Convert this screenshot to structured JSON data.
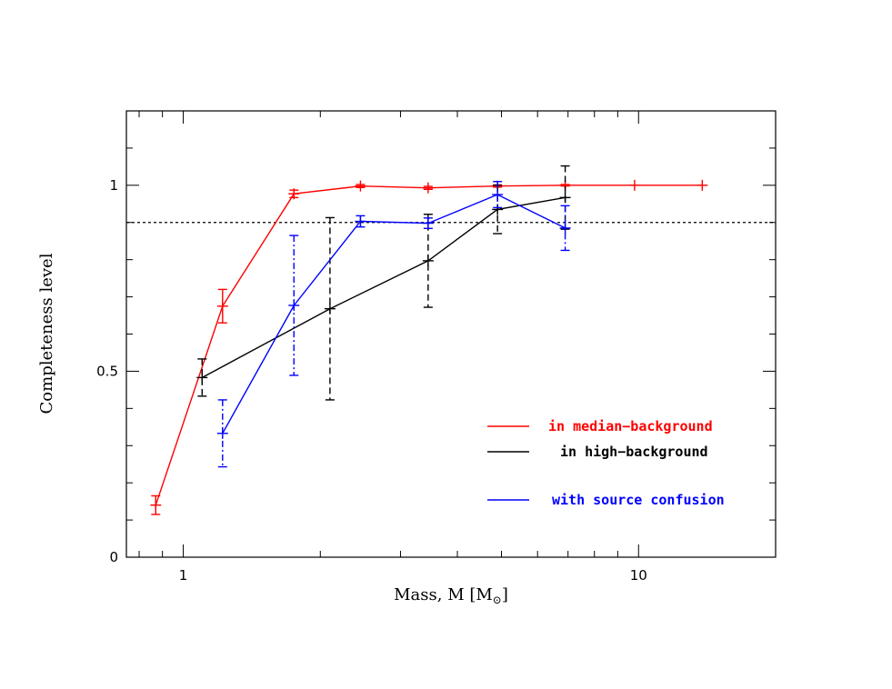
{
  "chart_data": {
    "type": "line",
    "xlabel": "Mass, M [M",
    "xlabel_sub": "⊙",
    "xlabel_close": "]",
    "ylabel": "Completeness level",
    "xscale": "log",
    "xlim": [
      0.75,
      20
    ],
    "ylim": [
      0,
      1.2
    ],
    "xticks": [
      {
        "value": 1,
        "label": "1"
      },
      {
        "value": 10,
        "label": "10"
      }
    ],
    "yticks": [
      {
        "value": 0,
        "label": "0"
      },
      {
        "value": 0.5,
        "label": "0.5"
      },
      {
        "value": 1,
        "label": "1"
      }
    ],
    "reference_line": {
      "y": 0.9,
      "style": "dotted",
      "color": "#000000"
    },
    "legend_position": "lower-right",
    "series": [
      {
        "name": "in median−background",
        "color": "#ff0000",
        "errorbar_style": "solid",
        "points": [
          {
            "x": 0.87,
            "y": 0.14,
            "err": 0.025
          },
          {
            "x": 1.22,
            "y": 0.675,
            "err": 0.045
          },
          {
            "x": 1.75,
            "y": 0.977,
            "err": 0.01
          },
          {
            "x": 2.45,
            "y": 0.998,
            "err": 0.004
          },
          {
            "x": 3.45,
            "y": 0.993,
            "err": 0.004
          },
          {
            "x": 4.9,
            "y": 0.998,
            "err": 0.003
          },
          {
            "x": 6.9,
            "y": 1.0,
            "err": 0.002
          },
          {
            "x": 9.8,
            "y": 1.0,
            "err": 0
          },
          {
            "x": 13.8,
            "y": 1.0,
            "err": 0
          }
        ]
      },
      {
        "name": "in high−background",
        "color": "#000000",
        "errorbar_style": "dashed",
        "points": [
          {
            "x": 1.1,
            "y": 0.483,
            "err": 0.05
          },
          {
            "x": 2.1,
            "y": 0.668,
            "err": 0.245
          },
          {
            "x": 3.45,
            "y": 0.797,
            "err": 0.125
          },
          {
            "x": 4.9,
            "y": 0.935,
            "err": 0.065
          },
          {
            "x": 6.9,
            "y": 0.967,
            "err": 0.085
          }
        ]
      },
      {
        "name": "with source confusion",
        "color": "#0000ff",
        "errorbar_style": "dashdot",
        "points": [
          {
            "x": 1.22,
            "y": 0.333,
            "err": 0.09
          },
          {
            "x": 1.75,
            "y": 0.677,
            "err": 0.188
          },
          {
            "x": 2.45,
            "y": 0.903,
            "err": 0.015
          },
          {
            "x": 3.45,
            "y": 0.898,
            "err": 0.014
          },
          {
            "x": 4.9,
            "y": 0.975,
            "err": 0.035
          },
          {
            "x": 6.9,
            "y": 0.885,
            "err": 0.06
          }
        ]
      }
    ]
  }
}
